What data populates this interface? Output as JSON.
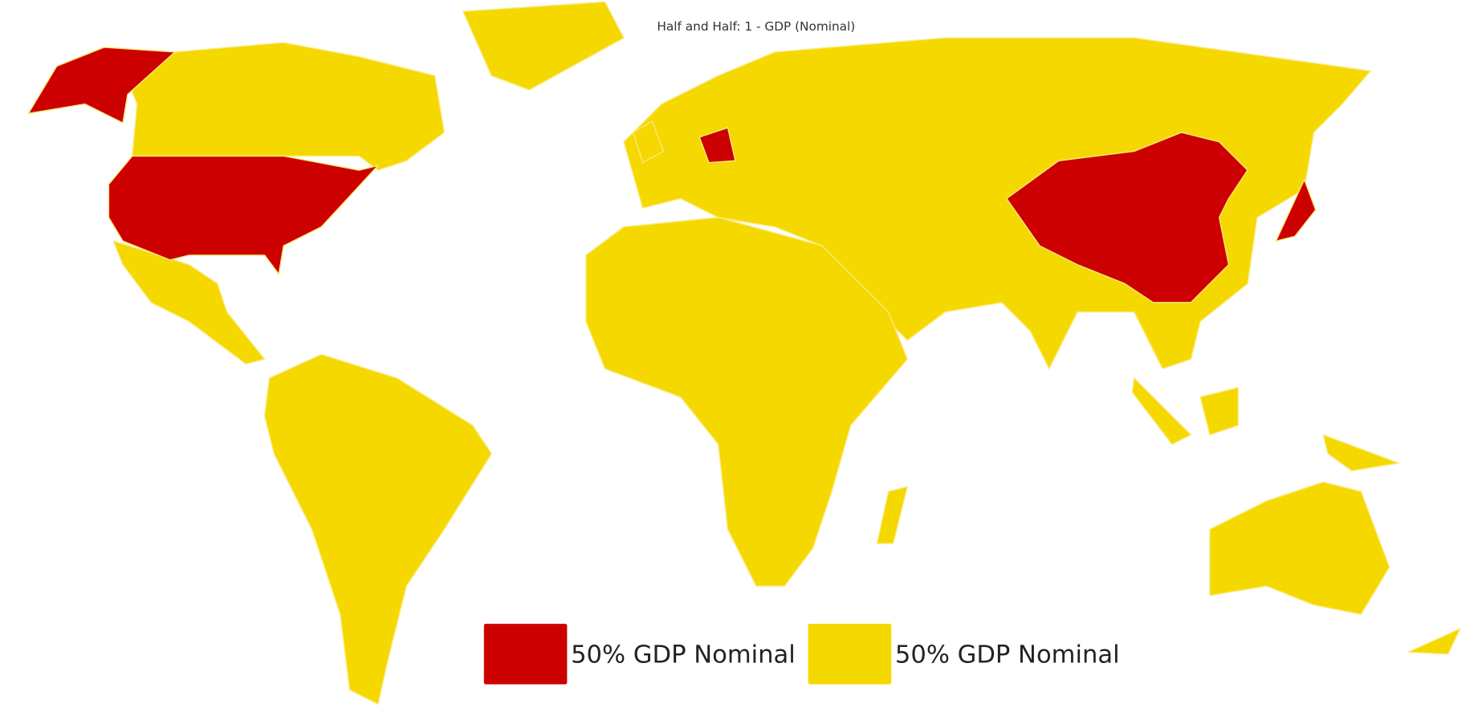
{
  "title": "Half and Half: 1 - GDP (Nominal)",
  "legend": [
    {
      "label": "50% GDP Nominal",
      "color": "#cc0000"
    },
    {
      "label": "50% GDP Nominal",
      "color": "#f5d800"
    }
  ]
}
